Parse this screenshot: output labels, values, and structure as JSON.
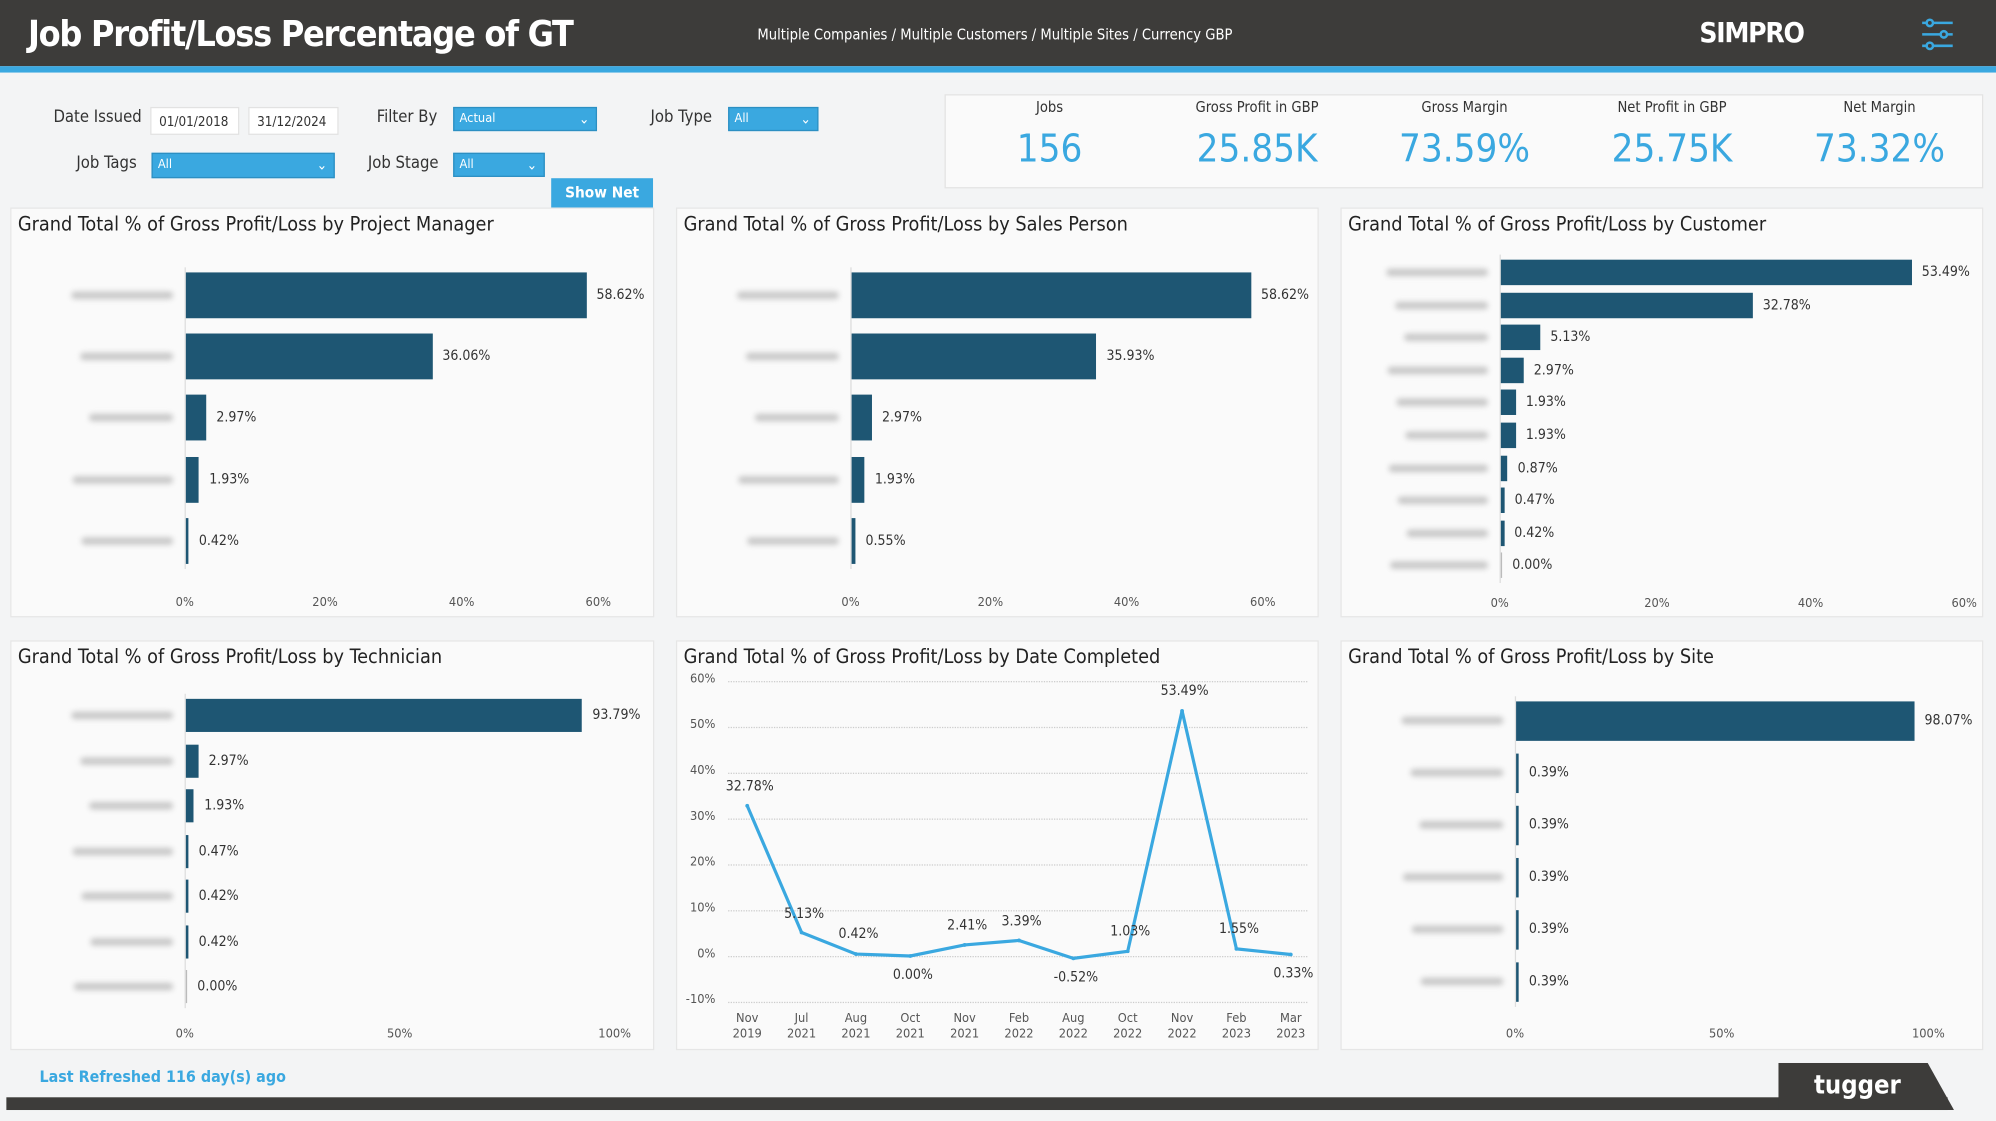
{
  "header": {
    "title": "Job Profit/Loss Percentage of GT",
    "breadcrumb": "Multiple Companies / Multiple Customers / Multiple Sites / Currency GBP",
    "logo": "SIMPRO",
    "settings_icon": "sliders-icon"
  },
  "filters": {
    "date_issued_label": "Date Issued",
    "date_from": "01/01/2018",
    "date_to": "31/12/2024",
    "filter_by_label": "Filter By",
    "filter_by_value": "Actual",
    "job_type_label": "Job Type",
    "job_type_value": "All",
    "job_tags_label": "Job Tags",
    "job_tags_value": "All",
    "job_stage_label": "Job Stage",
    "job_stage_value": "All",
    "show_net_label": "Show Net"
  },
  "kpis": [
    {
      "label": "Jobs",
      "value": "156"
    },
    {
      "label": "Gross Profit in GBP",
      "value": "25.85K"
    },
    {
      "label": "Gross Margin",
      "value": "73.59%"
    },
    {
      "label": "Net Profit in GBP",
      "value": "25.75K"
    },
    {
      "label": "Net Margin",
      "value": "73.32%"
    }
  ],
  "colors": {
    "accent": "#3aa8e0",
    "bar": "#1e5673",
    "header": "#3d3c3a"
  },
  "chart_data": [
    {
      "type": "bar",
      "orientation": "horizontal",
      "title": "Grand Total % of Gross Profit/Loss by Project Manager",
      "values": [
        58.62,
        36.06,
        2.97,
        1.93,
        0.42
      ],
      "labels": [
        "58.62%",
        "36.06%",
        "2.97%",
        "1.93%",
        "0.42%"
      ],
      "xticks": [
        "0%",
        "20%",
        "40%",
        "60%"
      ],
      "xlim": [
        0,
        60
      ],
      "categories_redacted": true
    },
    {
      "type": "bar",
      "orientation": "horizontal",
      "title": "Grand Total % of Gross Profit/Loss by Sales Person",
      "values": [
        58.62,
        35.93,
        2.97,
        1.93,
        0.55
      ],
      "labels": [
        "58.62%",
        "35.93%",
        "2.97%",
        "1.93%",
        "0.55%"
      ],
      "xticks": [
        "0%",
        "20%",
        "40%",
        "60%"
      ],
      "xlim": [
        0,
        60
      ],
      "categories_redacted": true
    },
    {
      "type": "bar",
      "orientation": "horizontal",
      "title": "Grand Total % of Gross Profit/Loss by Customer",
      "values": [
        53.49,
        32.78,
        5.13,
        2.97,
        1.93,
        1.93,
        0.87,
        0.47,
        0.42,
        0.0
      ],
      "labels": [
        "53.49%",
        "32.78%",
        "5.13%",
        "2.97%",
        "1.93%",
        "1.93%",
        "0.87%",
        "0.47%",
        "0.42%",
        "0.00%"
      ],
      "xticks": [
        "0%",
        "20%",
        "40%",
        "60%"
      ],
      "xlim": [
        0,
        60
      ],
      "categories_redacted": true
    },
    {
      "type": "bar",
      "orientation": "horizontal",
      "title": "Grand Total % of Gross Profit/Loss by Technician",
      "values": [
        93.79,
        2.97,
        1.93,
        0.47,
        0.42,
        0.42,
        0.0
      ],
      "labels": [
        "93.79%",
        "2.97%",
        "1.93%",
        "0.47%",
        "0.42%",
        "0.42%",
        "0.00%"
      ],
      "xticks": [
        "0%",
        "50%",
        "100%"
      ],
      "xlim": [
        0,
        100
      ],
      "categories_redacted": true
    },
    {
      "type": "line",
      "title": "Grand Total % of Gross Profit/Loss by Date Completed",
      "x": [
        "Nov 2019",
        "Jul 2021",
        "Aug 2021",
        "Oct 2021",
        "Nov 2021",
        "Feb 2022",
        "Aug 2022",
        "Oct 2022",
        "Nov 2022",
        "Feb 2023",
        "Mar 2023"
      ],
      "values": [
        32.78,
        5.13,
        0.42,
        0.0,
        2.41,
        3.39,
        -0.52,
        1.03,
        53.49,
        1.55,
        0.33
      ],
      "labels": [
        "32.78%",
        "5.13%",
        "0.42%",
        "0.00%",
        "2.41%",
        "3.39%",
        "-0.52%",
        "1.03%",
        "53.49%",
        "1.55%",
        "0.33%"
      ],
      "yticks": [
        "60%",
        "50%",
        "40%",
        "30%",
        "20%",
        "10%",
        "0%",
        "-10%"
      ],
      "ylim": [
        -10,
        60
      ],
      "grid": true
    },
    {
      "type": "bar",
      "orientation": "horizontal",
      "title": "Grand Total % of Gross Profit/Loss by Site",
      "values": [
        98.07,
        0.39,
        0.39,
        0.39,
        0.39,
        0.39
      ],
      "labels": [
        "98.07%",
        "0.39%",
        "0.39%",
        "0.39%",
        "0.39%",
        "0.39%"
      ],
      "xticks": [
        "0%",
        "50%",
        "100%"
      ],
      "xlim": [
        0,
        100
      ],
      "categories_redacted": true
    }
  ],
  "footer": {
    "last_refreshed": "Last Refreshed 116 day(s) ago",
    "brand": "tugger"
  }
}
